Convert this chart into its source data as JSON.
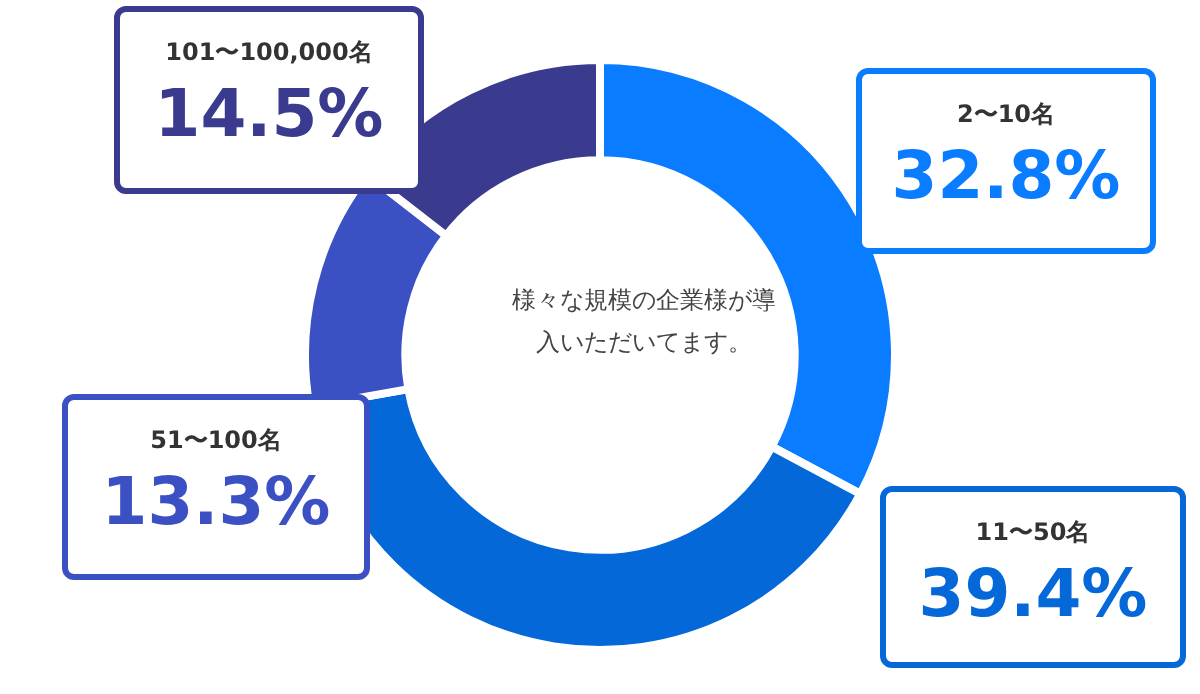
{
  "chart_data": {
    "type": "donut",
    "title": "様々な規模の企業様が導入いただいてます。",
    "categories": [
      "2〜10名",
      "11〜50名",
      "51〜100名",
      "101〜100,000名"
    ],
    "values": [
      32.8,
      39.4,
      13.3,
      14.5
    ],
    "value_labels": [
      "32.8%",
      "39.4%",
      "13.3%",
      "14.5%"
    ],
    "colors": [
      "#0a7cff",
      "#0568d8",
      "#3b50c2",
      "#3a3a8e"
    ],
    "legend": false
  }
}
